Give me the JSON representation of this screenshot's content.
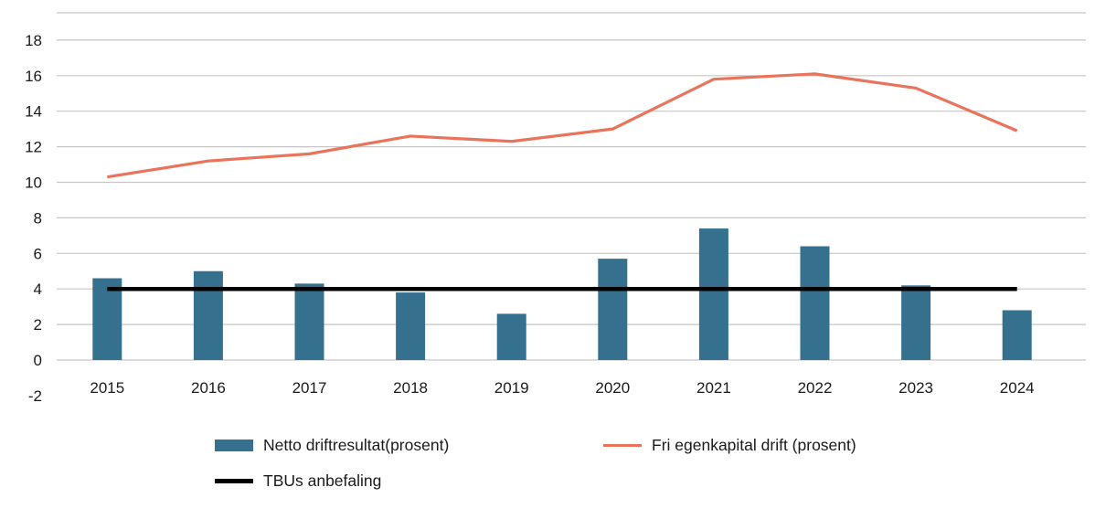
{
  "page": {
    "background": "#ffffff"
  },
  "chart_data": {
    "type": "bar+line",
    "title": "",
    "categories": [
      "2015",
      "2016",
      "2017",
      "2018",
      "2019",
      "2020",
      "2021",
      "2022",
      "2023",
      "2024"
    ],
    "series": [
      {
        "name": "Netto driftresultat(prosent)",
        "type": "bar",
        "color": "#35708E",
        "values": [
          4.6,
          5.0,
          4.3,
          3.8,
          2.6,
          5.7,
          7.4,
          6.4,
          4.2,
          2.8
        ]
      },
      {
        "name": "Fri egenkapital drift (prosent)",
        "type": "line",
        "color": "#E9735B",
        "stroke_width": 3.2,
        "values": [
          10.3,
          11.2,
          11.6,
          12.6,
          12.3,
          13.0,
          15.8,
          16.1,
          15.3,
          12.9
        ]
      },
      {
        "name": "TBUs anbefaling",
        "type": "line",
        "color": "#000000",
        "stroke_width": 4.5,
        "values": [
          4,
          4,
          4,
          4,
          4,
          4,
          4,
          4,
          4,
          4
        ]
      }
    ],
    "ylim": [
      -2,
      18
    ],
    "ytick_step": 2,
    "yticks": [
      -2,
      0,
      2,
      4,
      6,
      8,
      10,
      12,
      14,
      16,
      18
    ],
    "grid": true,
    "gridline_color": "#c6c6c6",
    "axis_text_color": "#1a1a1a",
    "legend_position": "bottom"
  }
}
